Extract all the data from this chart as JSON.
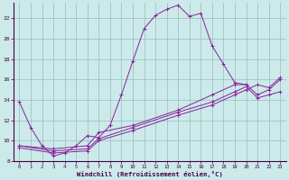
{
  "background_color": "#cceaea",
  "grid_color": "#99bbbb",
  "line_color": "#882299",
  "xlabel": "Windchill (Refroidissement éolien,°C)",
  "xlim": [
    -0.5,
    23.5
  ],
  "ylim": [
    8,
    23.5
  ],
  "yticks": [
    8,
    10,
    12,
    14,
    16,
    18,
    20,
    22
  ],
  "xticks": [
    0,
    1,
    2,
    3,
    4,
    5,
    6,
    7,
    8,
    9,
    10,
    11,
    12,
    13,
    14,
    15,
    16,
    17,
    18,
    19,
    20,
    21,
    22,
    23
  ],
  "series1_x": [
    0,
    1,
    2,
    3,
    4,
    5,
    6,
    7,
    8,
    9,
    10,
    11,
    12,
    13,
    14,
    15,
    16,
    17,
    18,
    19,
    20
  ],
  "series1_y": [
    13.8,
    11.3,
    9.5,
    8.5,
    8.8,
    9.5,
    10.5,
    10.3,
    11.5,
    14.5,
    17.8,
    21.0,
    22.3,
    22.9,
    23.3,
    22.2,
    22.5,
    19.3,
    17.5,
    15.7,
    15.5
  ],
  "series2_x": [
    0,
    3,
    6,
    7,
    10,
    14,
    17,
    19,
    20,
    21,
    22,
    23
  ],
  "series2_y": [
    9.5,
    9.2,
    9.5,
    10.8,
    11.5,
    13.0,
    14.5,
    15.5,
    15.5,
    14.5,
    15.0,
    16.0
  ],
  "series3_x": [
    0,
    3,
    6,
    7,
    10,
    14,
    17,
    19,
    20,
    21,
    22,
    23
  ],
  "series3_y": [
    9.5,
    9.0,
    9.2,
    10.2,
    11.3,
    12.8,
    13.8,
    14.8,
    15.3,
    14.2,
    14.5,
    14.8
  ],
  "series4_x": [
    0,
    3,
    6,
    7,
    10,
    14,
    17,
    19,
    20,
    21,
    22,
    23
  ],
  "series4_y": [
    9.3,
    8.8,
    9.0,
    10.0,
    11.0,
    12.5,
    13.5,
    14.5,
    15.0,
    15.5,
    15.2,
    16.2
  ]
}
